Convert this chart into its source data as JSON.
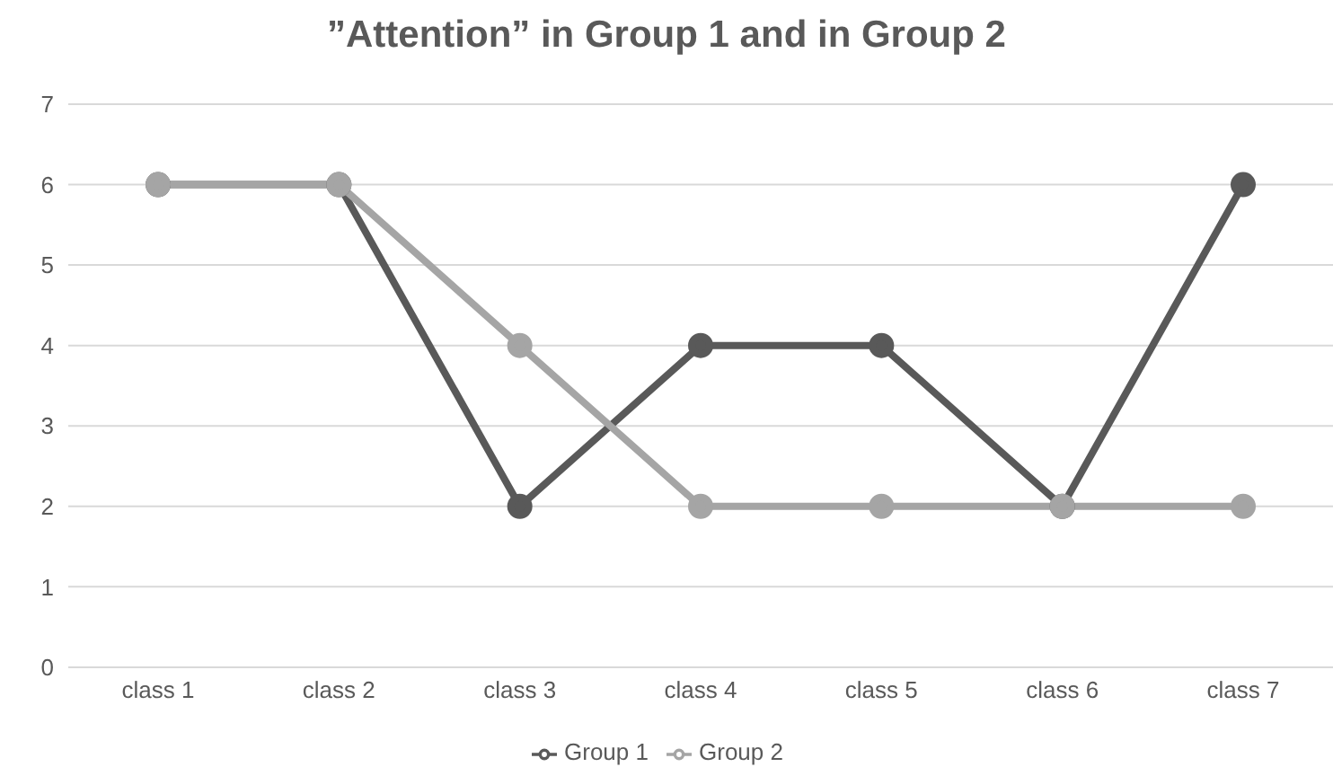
{
  "chart_data": {
    "type": "line",
    "title": "”Attention” in Group 1 and in Group 2",
    "categories": [
      "class 1",
      "class 2",
      "class 3",
      "class 4",
      "class 5",
      "class 6",
      "class 7"
    ],
    "series": [
      {
        "name": "Group 1",
        "color": "#595959",
        "values": [
          6,
          6,
          2,
          4,
          4,
          2,
          6
        ]
      },
      {
        "name": "Group 2",
        "color": "#a5a5a5",
        "values": [
          6,
          6,
          4,
          2,
          2,
          2,
          2
        ]
      }
    ],
    "ylim": [
      0,
      7
    ],
    "yticks": [
      0,
      1,
      2,
      3,
      4,
      5,
      6,
      7
    ],
    "grid": "y",
    "legend": "bottom",
    "marker": "circle",
    "line_style": "solid"
  }
}
